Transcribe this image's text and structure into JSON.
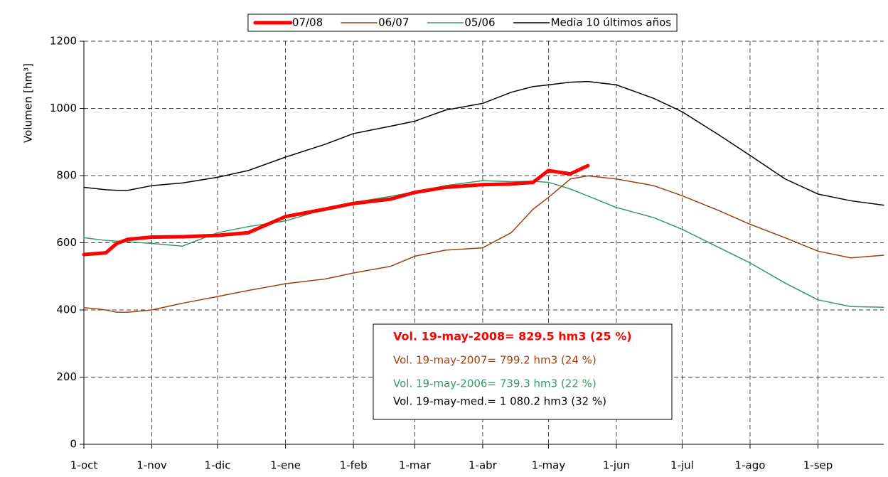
{
  "chart_data": {
    "type": "line",
    "y_label": "Volumen [hm³]",
    "x": [
      0,
      10,
      15,
      20,
      31,
      45,
      61,
      75,
      92,
      110,
      123,
      140,
      151,
      165,
      182,
      195,
      205,
      212,
      222,
      230,
      243,
      260,
      273,
      290,
      304,
      320,
      335,
      350,
      365
    ],
    "xlim": [
      0,
      365
    ],
    "xticks": [
      {
        "value": 0,
        "label": "1-oct"
      },
      {
        "value": 31,
        "label": "1-nov"
      },
      {
        "value": 61,
        "label": "1-dic"
      },
      {
        "value": 92,
        "label": "1-ene"
      },
      {
        "value": 123,
        "label": "1-feb"
      },
      {
        "value": 151,
        "label": "1-mar"
      },
      {
        "value": 182,
        "label": "1-abr"
      },
      {
        "value": 212,
        "label": "1-may"
      },
      {
        "value": 243,
        "label": "1-jun"
      },
      {
        "value": 273,
        "label": "1-jul"
      },
      {
        "value": 304,
        "label": "1-ago"
      },
      {
        "value": 335,
        "label": "1-sep"
      }
    ],
    "ylim": [
      0,
      1200
    ],
    "yticks": [
      0,
      200,
      400,
      600,
      800,
      1000,
      1200
    ],
    "grid": true,
    "legend": "top",
    "series": [
      {
        "name": "07/08",
        "color": "#ff0000",
        "line_width": 5,
        "values": [
          565,
          570,
          598,
          610,
          617,
          618,
          622,
          630,
          678,
          700,
          717,
          730,
          750,
          765,
          773,
          775,
          780,
          815,
          805,
          829.5,
          null,
          null,
          null,
          null,
          null,
          null,
          null,
          null,
          null
        ]
      },
      {
        "name": "06/07",
        "color": "#a0410d",
        "line_width": 1.5,
        "values": [
          407,
          400,
          393,
          393,
          400,
          420,
          440,
          458,
          478,
          492,
          510,
          530,
          560,
          578,
          585,
          630,
          700,
          735,
          790,
          799.2,
          790,
          770,
          740,
          695,
          655,
          615,
          575,
          555,
          563
        ]
      },
      {
        "name": "05/06",
        "color": "#339966",
        "line_width": 1.5,
        "values": [
          615,
          607,
          605,
          603,
          598,
          590,
          630,
          648,
          665,
          700,
          720,
          738,
          752,
          770,
          785,
          782,
          783,
          780,
          760,
          739.3,
          705,
          675,
          640,
          585,
          540,
          480,
          430,
          410,
          408
        ]
      },
      {
        "name": "Media 10 últimos años",
        "color": "#000000",
        "line_width": 1.5,
        "values": [
          765,
          758,
          756,
          756,
          770,
          778,
          795,
          815,
          855,
          893,
          925,
          947,
          962,
          995,
          1015,
          1048,
          1065,
          1070,
          1078,
          1080.2,
          1070,
          1030,
          990,
          920,
          860,
          790,
          745,
          725,
          712
        ]
      }
    ],
    "annotations": [
      {
        "text": "Vol. 19-may-2008= 829.5 hm3 (25 %)",
        "color": "#ff0000",
        "bold": true
      },
      {
        "text": "Vol. 19-may-2007= 799.2 hm3 (24 %)",
        "color": "#a0410d",
        "bold": false
      },
      {
        "text": "Vol. 19-may-2006= 739.3 hm3 (22 %)",
        "color": "#339966",
        "bold": false
      },
      {
        "text": "Vol. 19-may-med.= 1 080.2 hm3 (32 %)",
        "color": "#000000",
        "bold": false
      }
    ]
  }
}
